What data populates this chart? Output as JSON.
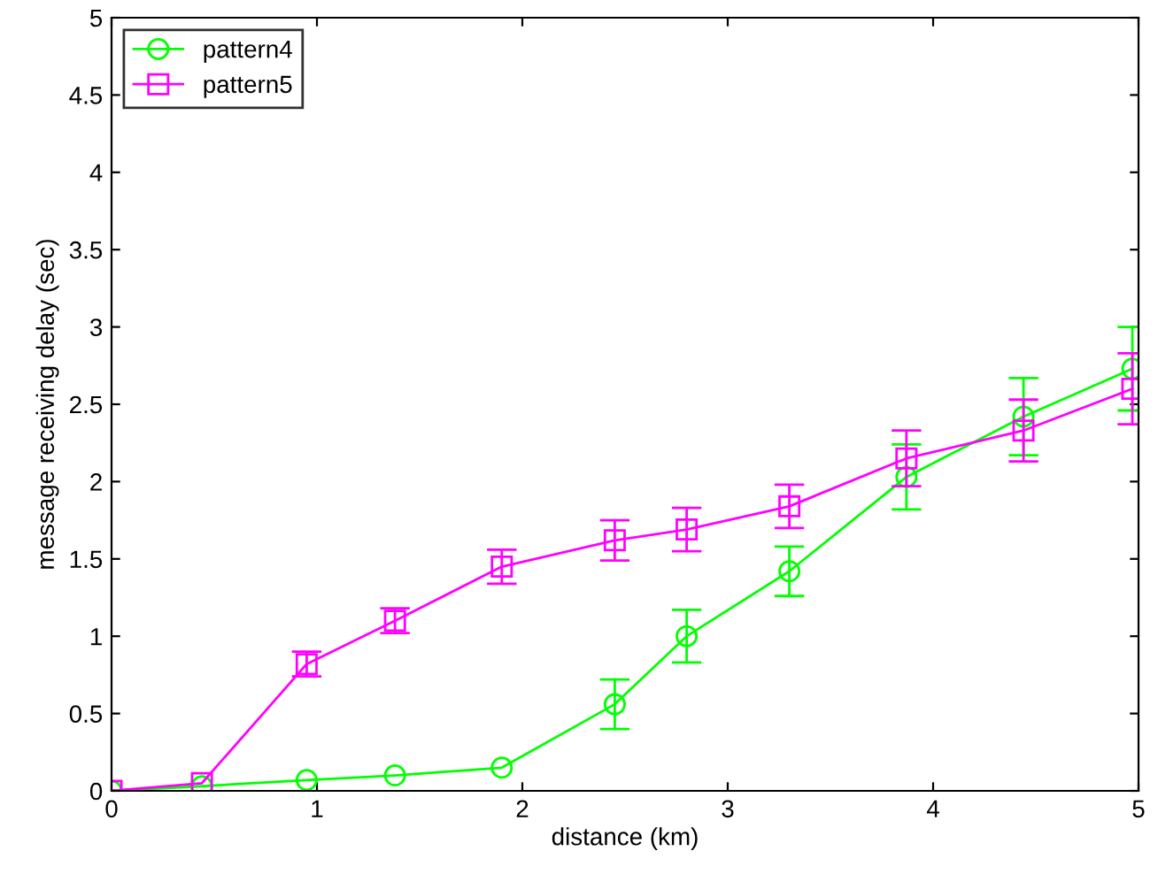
{
  "chart_data": {
    "type": "line",
    "xlabel": "distance (km)",
    "ylabel": "message receiving delay (sec)",
    "x": [
      0,
      0.44,
      0.95,
      1.38,
      1.9,
      2.45,
      2.8,
      3.3,
      3.87,
      4.44,
      4.97
    ],
    "series": [
      {
        "name": "pattern4",
        "color": "#00ff00",
        "marker": "circle",
        "values": [
          0,
          0.03,
          0.07,
          0.1,
          0.15,
          0.56,
          1.0,
          1.42,
          2.03,
          2.42,
          2.73
        ],
        "errors": [
          null,
          null,
          null,
          null,
          null,
          0.16,
          0.17,
          0.16,
          0.21,
          0.25,
          0.27
        ]
      },
      {
        "name": "pattern5",
        "color": "#ff00ff",
        "marker": "square",
        "values": [
          0,
          0.05,
          0.82,
          1.1,
          1.45,
          1.62,
          1.69,
          1.84,
          2.15,
          2.33,
          2.6
        ],
        "errors": [
          null,
          null,
          0.08,
          0.08,
          0.11,
          0.13,
          0.14,
          0.14,
          0.18,
          0.2,
          0.23
        ]
      }
    ],
    "xlim": [
      0,
      5
    ],
    "xticks": [
      0,
      1,
      2,
      3,
      4,
      5
    ],
    "ylim": [
      0,
      5
    ],
    "yticks": [
      0,
      0.5,
      1,
      1.5,
      2,
      2.5,
      3,
      3.5,
      4,
      4.5,
      5
    ],
    "grid": false,
    "legend": "top left",
    "line_style": "solid"
  }
}
